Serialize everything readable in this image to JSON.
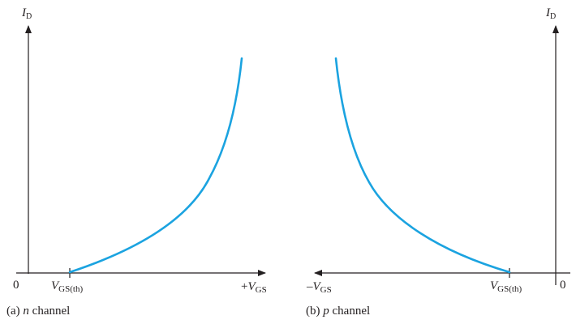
{
  "panels": [
    {
      "id": "n",
      "caption_prefix": "(a) ",
      "caption_italic": "n",
      "caption_suffix": " channel",
      "y_axis": {
        "main": "I",
        "sub": "D"
      },
      "origin_label": "0",
      "threshold": {
        "main": "V",
        "sub": "GS(th)"
      },
      "x_axis_end": {
        "sign": "+",
        "main": "V",
        "sub": "GS"
      }
    },
    {
      "id": "p",
      "caption_prefix": "(b) ",
      "caption_italic": "p",
      "caption_suffix": " channel",
      "y_axis": {
        "main": "I",
        "sub": "D"
      },
      "origin_label": "0",
      "threshold": {
        "main": "V",
        "sub": "GS(th)"
      },
      "x_axis_end": {
        "sign": "–",
        "main": "V",
        "sub": "GS"
      }
    }
  ],
  "colors": {
    "curve": "#1ba3e0",
    "axis": "#231f20"
  }
}
